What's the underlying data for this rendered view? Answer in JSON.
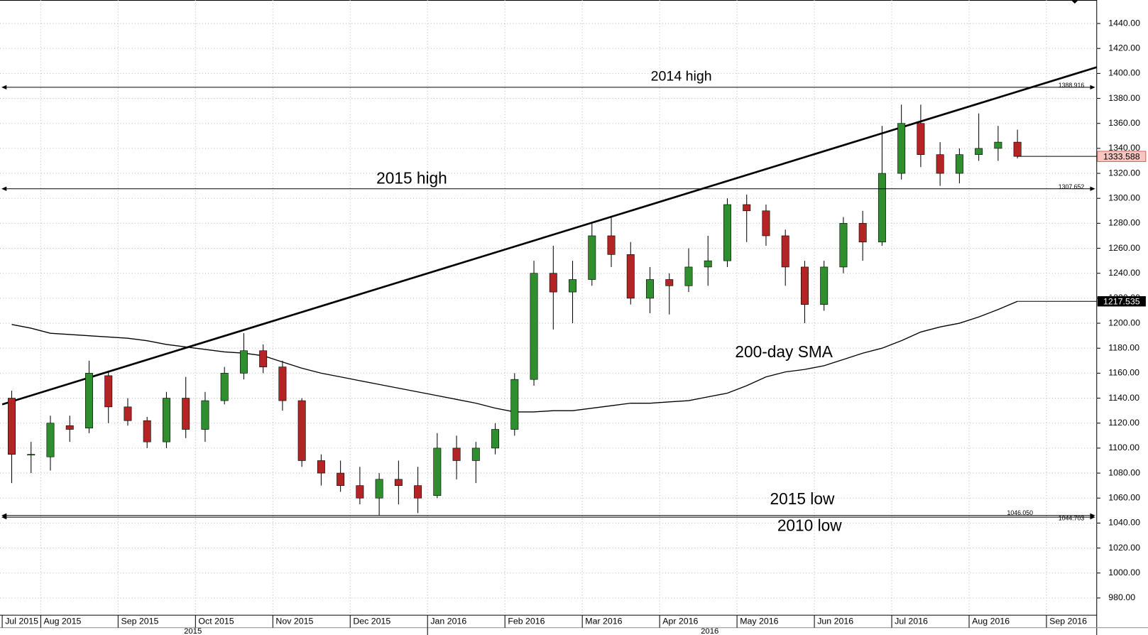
{
  "chart_data": {
    "type": "candlestick",
    "ylim": [
      966.2,
      1458.8
    ],
    "yticks": [
      {
        "value": 980,
        "label": "980.00"
      },
      {
        "value": 1000,
        "label": "1000.00"
      },
      {
        "value": 1020,
        "label": "1020.00"
      },
      {
        "value": 1040,
        "label": "1040.00"
      },
      {
        "value": 1060,
        "label": "1060.00"
      },
      {
        "value": 1080,
        "label": "1080.00"
      },
      {
        "value": 1100,
        "label": "1100.00"
      },
      {
        "value": 1120,
        "label": "1120.00"
      },
      {
        "value": 1140,
        "label": "1140.00"
      },
      {
        "value": 1160,
        "label": "1160.00"
      },
      {
        "value": 1180,
        "label": "1180.00"
      },
      {
        "value": 1200,
        "label": "1200.00"
      },
      {
        "value": 1220,
        "label": "1220.00"
      },
      {
        "value": 1240,
        "label": "1240.00"
      },
      {
        "value": 1260,
        "label": "1260.00"
      },
      {
        "value": 1280,
        "label": "1280.00"
      },
      {
        "value": 1300,
        "label": "1300.00"
      },
      {
        "value": 1320,
        "label": "1320.00"
      },
      {
        "value": 1340,
        "label": "1340.00"
      },
      {
        "value": 1360,
        "label": "1360.00"
      },
      {
        "value": 1380,
        "label": "1380.00"
      },
      {
        "value": 1400,
        "label": "1400.00"
      },
      {
        "value": 1420,
        "label": "1420.00"
      },
      {
        "value": 1440,
        "label": "1440.00"
      }
    ],
    "grid": true,
    "colors": {
      "up": "#2f8f2f",
      "down": "#b52424",
      "wick": "#000000",
      "sma": "#000000",
      "last_price": "#f7c6c0"
    },
    "years": [
      {
        "label": "2015",
        "months": [
          {
            "label": "Jul 2015",
            "candles": [
              [
                1140,
                1146,
                1072,
                1095
              ],
              [
                1095,
                1105,
                1080,
                1095
              ]
            ],
            "sma": [
              1199,
              1196
            ]
          },
          {
            "label": "Aug 2015",
            "candles": [
              [
                1093,
                1126,
                1082,
                1120
              ],
              [
                1118,
                1126,
                1105,
                1115
              ],
              [
                1116,
                1170,
                1112,
                1160
              ],
              [
                1158,
                1162,
                1120,
                1133
              ]
            ],
            "sma": [
              1192,
              1191,
              1190,
              1189
            ]
          },
          {
            "label": "Sep 2015",
            "candles": [
              [
                1133,
                1140,
                1118,
                1122
              ],
              [
                1122,
                1125,
                1100,
                1105
              ],
              [
                1105,
                1145,
                1100,
                1140
              ],
              [
                1140,
                1157,
                1108,
                1115
              ]
            ],
            "sma": [
              1188,
              1186,
              1183,
              1181
            ]
          },
          {
            "label": "Oct 2015",
            "candles": [
              [
                1115,
                1145,
                1105,
                1138
              ],
              [
                1138,
                1165,
                1135,
                1160
              ],
              [
                1160,
                1192,
                1155,
                1178
              ],
              [
                1178,
                1183,
                1160,
                1165
              ]
            ],
            "sma": [
              1179,
              1177,
              1176,
              1174
            ]
          },
          {
            "label": "Nov 2015",
            "candles": [
              [
                1165,
                1170,
                1130,
                1138
              ],
              [
                1138,
                1140,
                1085,
                1090
              ],
              [
                1090,
                1095,
                1070,
                1080
              ],
              [
                1080,
                1090,
                1065,
                1070
              ]
            ],
            "sma": [
              1169,
              1164,
              1160,
              1157
            ]
          },
          {
            "label": "Dec 2015",
            "candles": [
              [
                1070,
                1085,
                1055,
                1060
              ],
              [
                1060,
                1080,
                1046,
                1075
              ],
              [
                1075,
                1090,
                1055,
                1070
              ],
              [
                1070,
                1085,
                1048,
                1060
              ]
            ],
            "sma": [
              1154,
              1151,
              1148,
              1145
            ]
          }
        ]
      },
      {
        "label": "2016",
        "months": [
          {
            "label": "Jan 2016",
            "candles": [
              [
                1062,
                1112,
                1060,
                1100
              ],
              [
                1100,
                1110,
                1075,
                1090
              ],
              [
                1090,
                1105,
                1072,
                1100
              ],
              [
                1100,
                1120,
                1095,
                1115
              ]
            ],
            "sma": [
              1142,
              1139,
              1136,
              1132
            ]
          },
          {
            "label": "Feb 2016",
            "candles": [
              [
                1115,
                1160,
                1110,
                1155
              ],
              [
                1155,
                1250,
                1150,
                1240
              ],
              [
                1240,
                1262,
                1195,
                1225
              ],
              [
                1225,
                1250,
                1200,
                1235
              ]
            ],
            "sma": [
              1129,
              1129,
              1130,
              1130
            ]
          },
          {
            "label": "Mar 2016",
            "candles": [
              [
                1235,
                1280,
                1230,
                1270
              ],
              [
                1270,
                1285,
                1245,
                1255
              ],
              [
                1255,
                1265,
                1215,
                1220
              ],
              [
                1220,
                1245,
                1208,
                1235
              ]
            ],
            "sma": [
              1132,
              1134,
              1136,
              1136
            ]
          },
          {
            "label": "Apr 2016",
            "candles": [
              [
                1235,
                1240,
                1207,
                1230
              ],
              [
                1230,
                1260,
                1225,
                1245
              ],
              [
                1245,
                1270,
                1230,
                1250
              ],
              [
                1250,
                1300,
                1245,
                1295
              ]
            ],
            "sma": [
              1137,
              1138,
              1141,
              1144
            ]
          },
          {
            "label": "May 2016",
            "candles": [
              [
                1295,
                1303,
                1265,
                1290
              ],
              [
                1290,
                1295,
                1262,
                1270
              ],
              [
                1270,
                1275,
                1230,
                1245
              ],
              [
                1245,
                1250,
                1200,
                1215
              ]
            ],
            "sma": [
              1150,
              1157,
              1161,
              1163
            ]
          },
          {
            "label": "Jun 2016",
            "candles": [
              [
                1215,
                1250,
                1210,
                1245
              ],
              [
                1245,
                1285,
                1240,
                1280
              ],
              [
                1280,
                1290,
                1250,
                1265
              ],
              [
                1265,
                1358,
                1262,
                1320
              ]
            ],
            "sma": [
              1166,
              1171,
              1176,
              1180
            ]
          },
          {
            "label": "Jul 2016",
            "candles": [
              [
                1320,
                1375,
                1315,
                1360
              ],
              [
                1360,
                1375,
                1325,
                1335
              ],
              [
                1335,
                1345,
                1310,
                1320
              ],
              [
                1320,
                1340,
                1312,
                1335
              ]
            ],
            "sma": [
              1186,
              1193,
              1197,
              1200
            ]
          },
          {
            "label": "Aug 2016",
            "candles": [
              [
                1335,
                1368,
                1330,
                1340
              ],
              [
                1340,
                1358,
                1330,
                1345
              ],
              [
                1345,
                1355,
                1332,
                1333.588
              ]
            ],
            "sma": [
              1205,
              1211,
              1217.535
            ]
          },
          {
            "label": "Sep 2016",
            "candles": [],
            "sma": []
          }
        ]
      }
    ],
    "trendline": {
      "start": 1135,
      "end": 1405
    },
    "levels": [
      {
        "name": "2014 high",
        "value": 1388.916
      },
      {
        "name": "2015 high",
        "value": 1307.652
      },
      {
        "name": "2015 low",
        "value": {
          "value": 1046.05,
          "label": "1046.050"
        }
      },
      {
        "name": "2010 low",
        "value": 1044.703
      }
    ],
    "annotations": [
      {
        "text": "200-day SMA"
      }
    ]
  }
}
